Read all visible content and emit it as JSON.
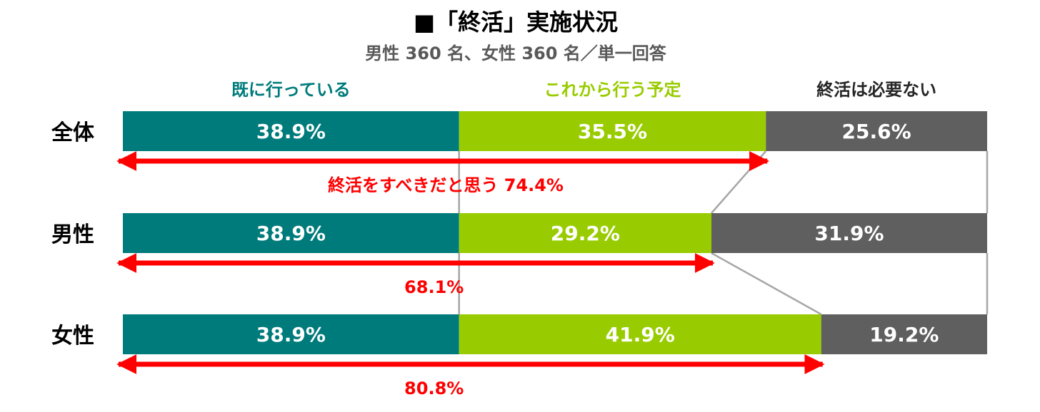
{
  "title": "■「終活」実施状況",
  "subtitle": "男性 360 名、女性 360 名／単一回答",
  "colors": {
    "already": "#007B7B",
    "planned": "#99CC00",
    "unnecessary": "#5F5F5F",
    "arrow": "#FF0000",
    "connector": "#A6A6A6"
  },
  "chart_data": {
    "type": "bar",
    "orientation": "horizontal-stacked-100",
    "title": "■「終活」実施状況",
    "subtitle": "男性 360 名、女性 360 名／単一回答",
    "categories": [
      "全体",
      "男性",
      "女性"
    ],
    "series": [
      {
        "name": "既に行っている",
        "values": [
          38.9,
          38.9,
          38.9
        ],
        "labels": [
          "38.9%",
          "38.9%",
          "38.9%"
        ]
      },
      {
        "name": "これから行う予定",
        "values": [
          35.5,
          29.2,
          41.9
        ],
        "labels": [
          "35.5%",
          "29.2%",
          "41.9%"
        ]
      },
      {
        "name": "終活は必要ない",
        "values": [
          25.6,
          31.9,
          19.2
        ],
        "labels": [
          "25.6%",
          "31.9%",
          "19.2%"
        ]
      }
    ],
    "annotations": [
      {
        "category": "全体",
        "value": 74.4,
        "label": "終活をすべきだと思う  74.4%"
      },
      {
        "category": "男性",
        "value": 68.1,
        "label": "68.1%"
      },
      {
        "category": "女性",
        "value": 80.8,
        "label": "80.8%"
      }
    ],
    "legend_position": "top",
    "xlim": [
      0,
      100
    ],
    "grid": false
  }
}
